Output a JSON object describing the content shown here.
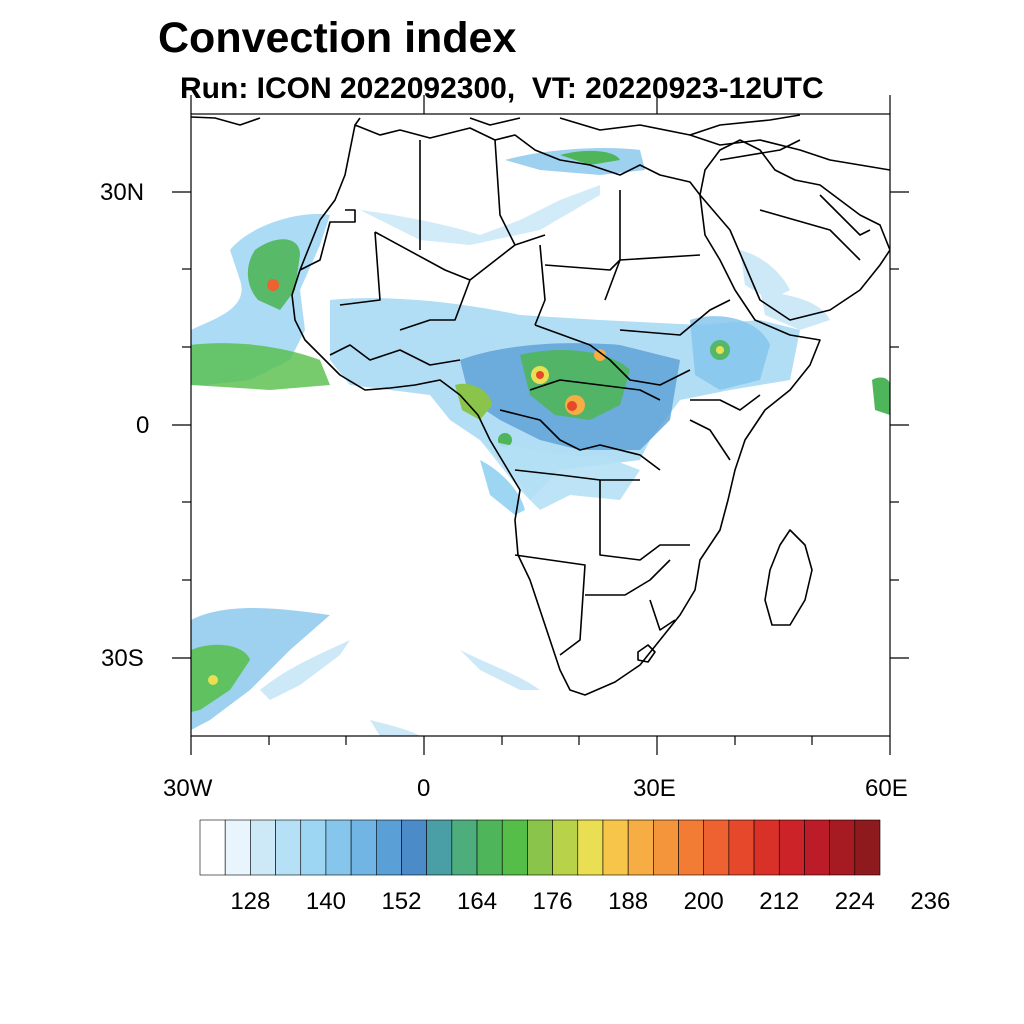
{
  "title": "Convection index",
  "subtitle": "Run: ICON 2022092300,  VT: 20220923-12UTC",
  "map": {
    "projection": "cylindrical-equidistant",
    "lon_range": [
      -30,
      60
    ],
    "lat_range": [
      -40,
      40
    ],
    "lon_ticks": [
      {
        "value": -30,
        "label": "30W"
      },
      {
        "value": 0,
        "label": "0"
      },
      {
        "value": 30,
        "label": "30E"
      },
      {
        "value": 60,
        "label": "60E"
      }
    ],
    "lat_ticks": [
      {
        "value": 30,
        "label": "30N"
      },
      {
        "value": 0,
        "label": "0"
      },
      {
        "value": -30,
        "label": "30S"
      }
    ]
  },
  "colorbar": {
    "colors": [
      "#ffffff",
      "#e8f5fc",
      "#cde9f7",
      "#b5e0f5",
      "#9dd6f3",
      "#86c6ec",
      "#70b5e4",
      "#5a9fd6",
      "#4b8cc8",
      "#4a9fa6",
      "#4ead7c",
      "#4fb55a",
      "#55be48",
      "#8ac44a",
      "#b8d24a",
      "#eadf52",
      "#f7c54a",
      "#f5ad44",
      "#f5953b",
      "#f27c34",
      "#ee6130",
      "#e5482b",
      "#d93128",
      "#cc2329",
      "#bb1c28",
      "#a61a22",
      "#8f1a1d"
    ],
    "tick_labels": [
      "128",
      "140",
      "152",
      "164",
      "176",
      "188",
      "200",
      "212",
      "224",
      "236"
    ]
  }
}
